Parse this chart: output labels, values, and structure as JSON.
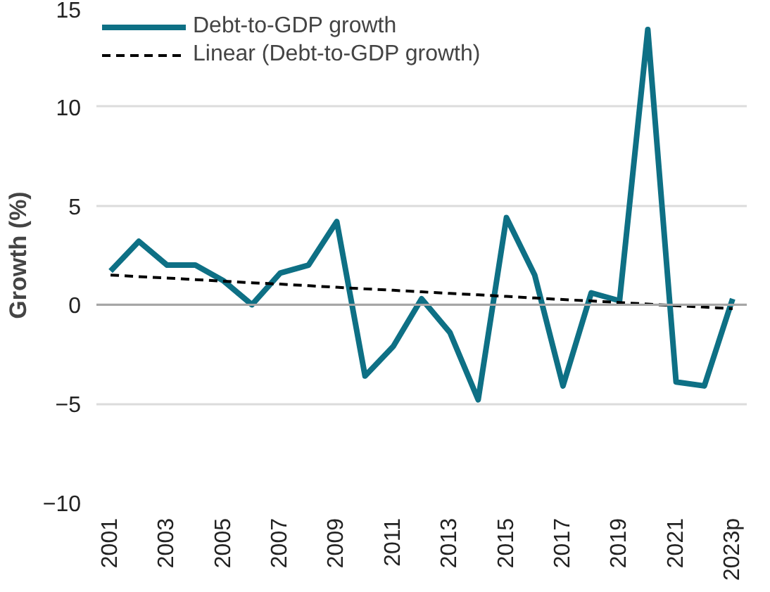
{
  "chart_data": {
    "type": "line",
    "ylabel": "Growth (%)",
    "categories": [
      "2001",
      null,
      "2003",
      null,
      "2005",
      null,
      "2007",
      null,
      "2009",
      null,
      "2011",
      null,
      "2013",
      null,
      "2015",
      null,
      "2017",
      null,
      "2019",
      null,
      "2021",
      null,
      "2023p"
    ],
    "series": [
      {
        "name": "Debt-to-GDP growth",
        "color": "#0e7085",
        "line_style": "solid",
        "values": [
          1.7,
          3.2,
          2.0,
          2.0,
          1.2,
          0.0,
          1.6,
          2.0,
          4.2,
          -3.6,
          -2.1,
          0.3,
          -1.4,
          -4.8,
          4.4,
          1.5,
          -4.1,
          0.6,
          0.2,
          13.9,
          -3.9,
          -4.1,
          0.3
        ]
      },
      {
        "name": "Linear (Debt-to-GDP growth)",
        "type": "line",
        "color": "#000000",
        "line_style": "dashed",
        "values": [
          1.5,
          1.42,
          1.35,
          1.27,
          1.19,
          1.11,
          1.04,
          0.96,
          0.88,
          0.8,
          0.73,
          0.65,
          0.57,
          0.5,
          0.42,
          0.34,
          0.26,
          0.19,
          0.11,
          0.03,
          -0.05,
          -0.12,
          -0.2
        ]
      }
    ],
    "ylim": [
      -10,
      15
    ],
    "yticks": [
      -10,
      -5,
      0,
      5,
      10,
      15
    ],
    "grid": "y",
    "legend": "top",
    "marker": "none",
    "ref_lines": [
      {
        "axis": "y",
        "value": 0,
        "color": "#a6a6a6"
      }
    ]
  }
}
